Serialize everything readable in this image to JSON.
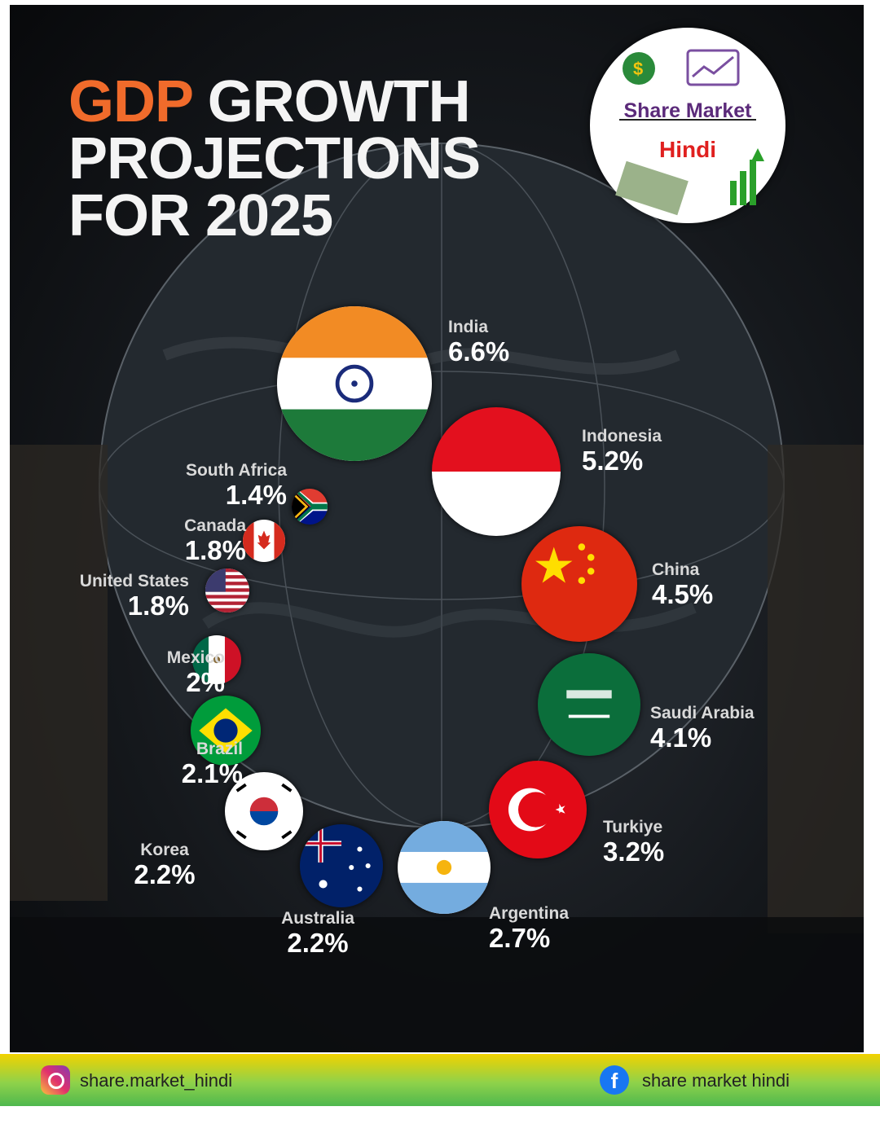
{
  "title": {
    "accent": "GDP",
    "line1_rest": " GROWTH",
    "line2": "PROJECTIONS",
    "line3": "FOR 2025"
  },
  "logo": {
    "line1": "Share Market",
    "line2": "Hindi"
  },
  "chart_data": {
    "type": "bubble",
    "title": "GDP GROWTH PROJECTIONS FOR 2025",
    "unit": "%",
    "categories": [
      "India",
      "Indonesia",
      "China",
      "Saudi Arabia",
      "Turkiye",
      "Argentina",
      "Australia",
      "Korea",
      "Brazil",
      "Mexico",
      "United States",
      "Canada",
      "South Africa"
    ],
    "values": [
      6.6,
      5.2,
      4.5,
      4.1,
      3.2,
      2.7,
      2.2,
      2.2,
      2.1,
      2,
      1.8,
      1.8,
      1.4
    ],
    "labels": [
      "6.6%",
      "5.2%",
      "4.5%",
      "4.1%",
      "3.2%",
      "2.7%",
      "2.2%",
      "2.2%",
      "2.1%",
      "2%",
      "1.8%",
      "1.8%",
      "1.4%"
    ]
  },
  "footer": {
    "instagram": "share.market_hindi",
    "facebook": "share market hindi"
  },
  "colors": {
    "accent": "#f06b2b",
    "background": "#15181c",
    "footer_top": "#f2d200",
    "footer_bottom": "#4fb84e"
  }
}
